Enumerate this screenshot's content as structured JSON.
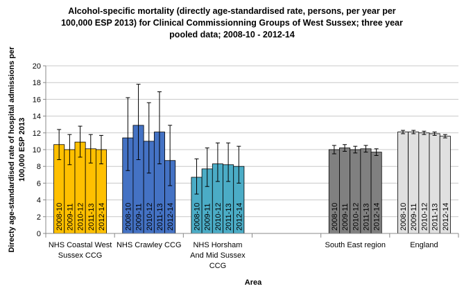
{
  "chart_data": {
    "type": "bar",
    "title_lines": [
      "Alcohol-specific mortality (directly age-standardised rate, persons, per year per",
      "100,000  ESP 2013)  for Clinical Commissionning Groups of West Sussex; three year",
      "pooled data;  2008-10  - 2012-14"
    ],
    "ylabel_lines": [
      "Directy age-standardised  rate of hospital admissions  per",
      "100,000  ESP 2013"
    ],
    "xlabel": "Area",
    "ylim": [
      0,
      20
    ],
    "yticks": [
      "0",
      "2",
      "4",
      "6",
      "8",
      "10",
      "12",
      "14",
      "16",
      "18",
      "20"
    ],
    "grid": true,
    "legend": "none",
    "periods": [
      "2008-10",
      "2009-11",
      "2010-12",
      "2011-13",
      "2012-14"
    ],
    "groups": [
      {
        "name_lines": [
          "NHS Coastal West",
          "Sussex CCG"
        ],
        "color": "#FFC000",
        "values": [
          10.6,
          10.0,
          10.9,
          10.1,
          10.0
        ],
        "lower": [
          8.8,
          8.2,
          9.1,
          8.4,
          8.3
        ],
        "upper": [
          12.4,
          11.8,
          12.8,
          11.8,
          11.7
        ]
      },
      {
        "name_lines": [
          "NHS Crawley CCG"
        ],
        "color": "#4472C4",
        "values": [
          11.4,
          12.9,
          11.0,
          12.1,
          8.7
        ],
        "lower": [
          7.5,
          8.8,
          7.2,
          8.3,
          5.7
        ],
        "upper": [
          16.2,
          17.8,
          15.6,
          16.9,
          12.9
        ]
      },
      {
        "name_lines": [
          "NHS Horsham",
          "And Mid Sussex",
          "CCG"
        ],
        "color": "#4BACC6",
        "values": [
          6.7,
          7.7,
          8.3,
          8.2,
          8.0
        ],
        "lower": [
          4.7,
          5.6,
          6.2,
          6.2,
          6.0
        ],
        "upper": [
          8.9,
          10.2,
          10.8,
          10.8,
          10.4
        ]
      },
      {
        "name_lines": [
          ""
        ],
        "color": "#FFFFFF",
        "values": [],
        "lower": [],
        "upper": []
      },
      {
        "name_lines": [
          "South East region"
        ],
        "color": "#808080",
        "values": [
          10.0,
          10.2,
          10.0,
          10.1,
          9.7
        ],
        "lower": [
          9.5,
          9.8,
          9.6,
          9.7,
          9.3
        ],
        "upper": [
          10.5,
          10.6,
          10.4,
          10.5,
          10.1
        ]
      },
      {
        "name_lines": [
          "England"
        ],
        "color": "#E0E0E0",
        "values": [
          12.1,
          12.1,
          12.0,
          11.9,
          11.6
        ],
        "lower": [
          11.9,
          11.9,
          11.8,
          11.7,
          11.4
        ],
        "upper": [
          12.3,
          12.3,
          12.2,
          12.1,
          11.8
        ]
      }
    ]
  }
}
